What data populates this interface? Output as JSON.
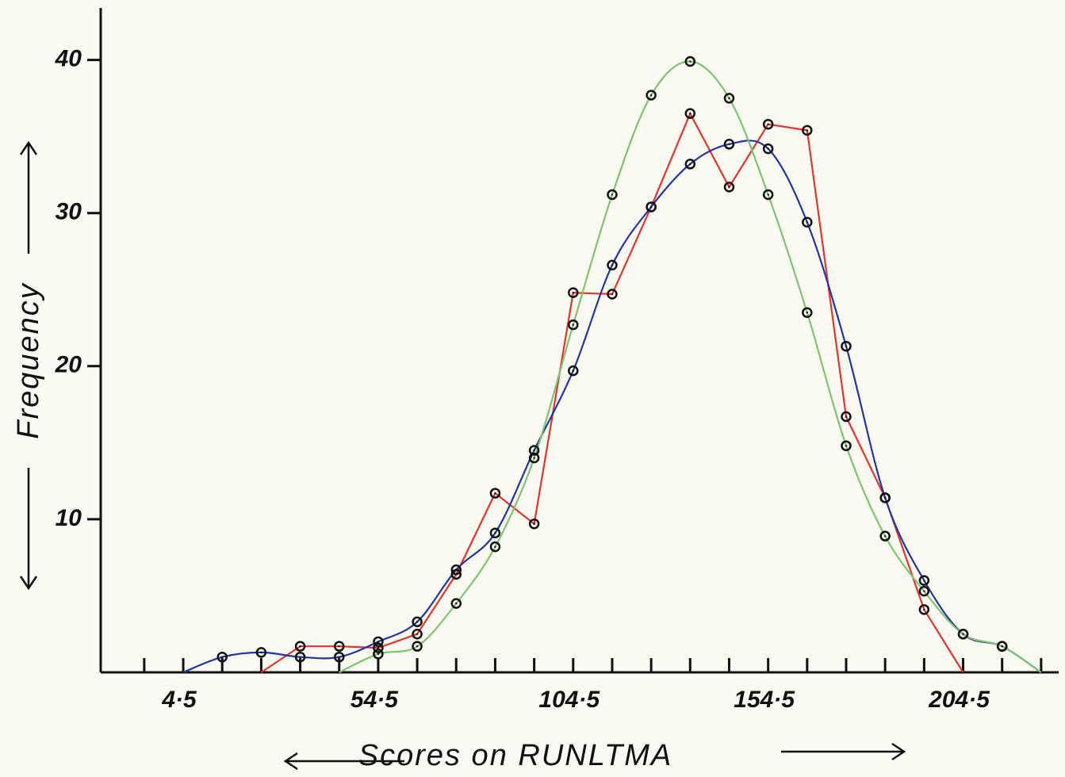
{
  "chart_data": {
    "type": "line",
    "xlabel": "Scores on RUNLTMA",
    "ylabel": "Frequency",
    "x": [
      4.5,
      14.5,
      24.5,
      34.5,
      44.5,
      54.5,
      64.5,
      74.5,
      84.5,
      94.5,
      104.5,
      114.5,
      124.5,
      134.5,
      144.5,
      154.5,
      164.5,
      174.5,
      184.5,
      194.5,
      204.5,
      214.5,
      224.5
    ],
    "series": [
      {
        "name": "Red",
        "color": "#e8322a",
        "smooth": false,
        "values": [
          null,
          null,
          0,
          1.7,
          1.7,
          1.6,
          2.5,
          6.4,
          11.7,
          9.7,
          24.8,
          24.7,
          30.4,
          36.5,
          31.7,
          35.8,
          35.4,
          16.7,
          11.4,
          4.1,
          0,
          null,
          null
        ]
      },
      {
        "name": "Blue",
        "color": "#1f35a8",
        "smooth": true,
        "values": [
          0,
          1.0,
          1.3,
          1.0,
          1.0,
          2.0,
          3.3,
          6.7,
          9.1,
          14.5,
          19.7,
          26.6,
          30.4,
          33.2,
          34.5,
          34.2,
          29.4,
          21.3,
          11.4,
          6.0,
          2.5,
          1.7,
          0
        ]
      },
      {
        "name": "Green",
        "color": "#7cc46e",
        "smooth": true,
        "values": [
          null,
          null,
          null,
          null,
          0,
          1.2,
          1.7,
          4.5,
          8.2,
          14.0,
          22.7,
          31.2,
          37.7,
          39.9,
          37.5,
          31.2,
          23.5,
          14.8,
          8.9,
          5.3,
          2.5,
          1.7,
          0
        ]
      }
    ],
    "xlim": [
      -13,
      229
    ],
    "ylim": [
      0,
      43.5
    ],
    "xticks": [
      {
        "value": 4.5,
        "label": "4·5"
      },
      {
        "value": 54.5,
        "label": "54·5"
      },
      {
        "value": 104.5,
        "label": "104·5"
      },
      {
        "value": 154.5,
        "label": "154·5"
      },
      {
        "value": 204.5,
        "label": "204·5"
      }
    ],
    "xticks_minor": [
      -5.5,
      14.5,
      24.5,
      34.5,
      44.5,
      64.5,
      74.5,
      84.5,
      94.5,
      114.5,
      124.5,
      134.5,
      144.5,
      164.5,
      174.5,
      184.5,
      194.5,
      214.5,
      224.5
    ],
    "yticks": [
      10,
      20,
      30,
      40
    ],
    "grid": false
  }
}
